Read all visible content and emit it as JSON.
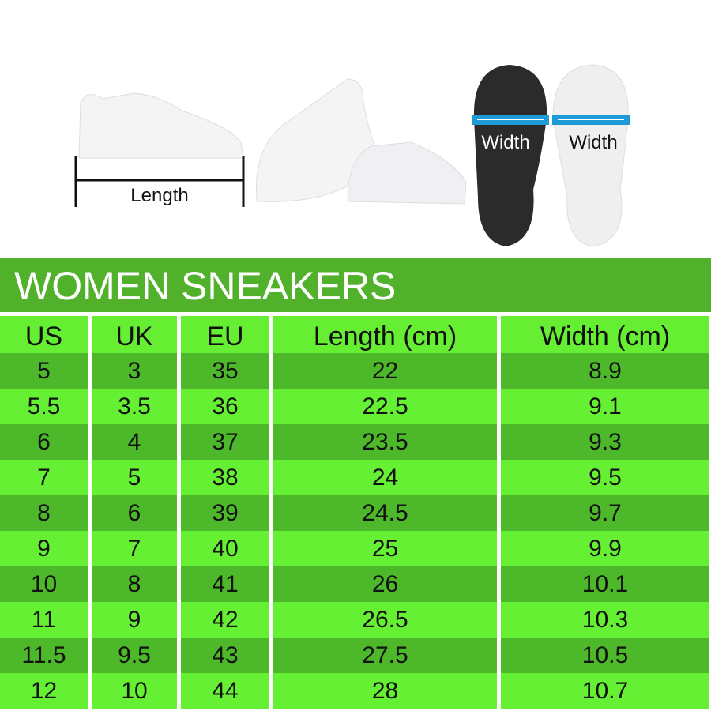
{
  "images": {
    "length_label": "Length",
    "width_label_dark": "Width",
    "width_label_light": "Width"
  },
  "title": "WOMEN SNEAKERS",
  "table": {
    "headers": [
      "US",
      "UK",
      "EU",
      "Length (cm)",
      "Width (cm)"
    ],
    "rows": [
      [
        "5",
        "3",
        "35",
        "22",
        "8.9"
      ],
      [
        "5.5",
        "3.5",
        "36",
        "22.5",
        "9.1"
      ],
      [
        "6",
        "4",
        "37",
        "23.5",
        "9.3"
      ],
      [
        "7",
        "5",
        "38",
        "24",
        "9.5"
      ],
      [
        "8",
        "6",
        "39",
        "24.5",
        "9.7"
      ],
      [
        "9",
        "7",
        "40",
        "25",
        "9.9"
      ],
      [
        "10",
        "8",
        "41",
        "26",
        "10.1"
      ],
      [
        "11",
        "9",
        "42",
        "26.5",
        "10.3"
      ],
      [
        "11.5",
        "9.5",
        "43",
        "27.5",
        "10.5"
      ],
      [
        "12",
        "10",
        "44",
        "28",
        "10.7"
      ]
    ]
  },
  "colors": {
    "title_bg": "#52b12b",
    "row_dark": "#4cb82a",
    "row_light": "#66f033",
    "measure_bar": "#1e9ad6"
  }
}
